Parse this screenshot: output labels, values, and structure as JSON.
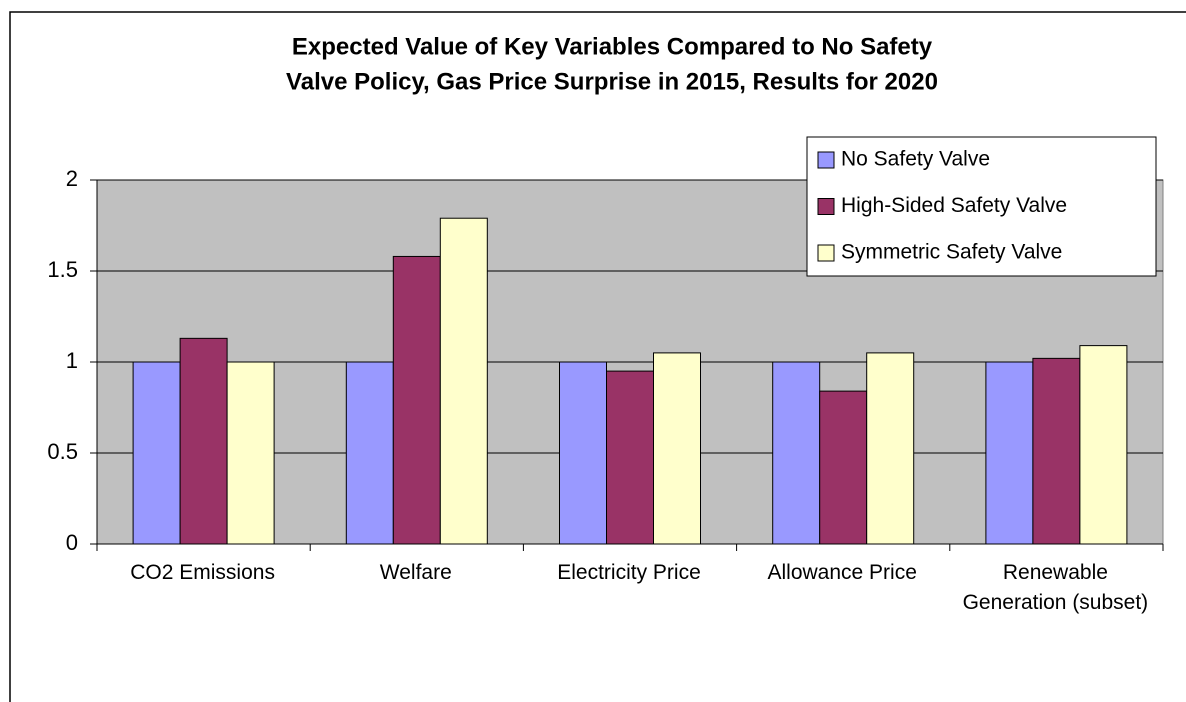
{
  "chart_data": {
    "type": "bar",
    "title": [
      "Expected Value of Key Variables Compared to No Safety",
      "Valve Policy, Gas Price Surprise in 2015, Results for 2020"
    ],
    "categories": [
      "CO2 Emissions",
      "Welfare",
      "Electricity Price",
      "Allowance Price",
      "Renewable Generation (subset)"
    ],
    "series": [
      {
        "name": "No Safety Valve",
        "color": "#9999ff",
        "values": [
          1,
          1,
          1,
          1,
          1
        ]
      },
      {
        "name": "High-Sided Safety Valve",
        "color": "#993366",
        "values": [
          1.13,
          1.58,
          0.95,
          0.84,
          1.02
        ]
      },
      {
        "name": "Symmetric Safety Valve",
        "color": "#ffffcc",
        "values": [
          1,
          1.79,
          1.05,
          1.05,
          1.09
        ]
      }
    ],
    "ylim": [
      0,
      2
    ],
    "yticks": [
      0,
      0.5,
      1,
      1.5,
      2
    ],
    "grid": true,
    "legend": "top-right"
  }
}
